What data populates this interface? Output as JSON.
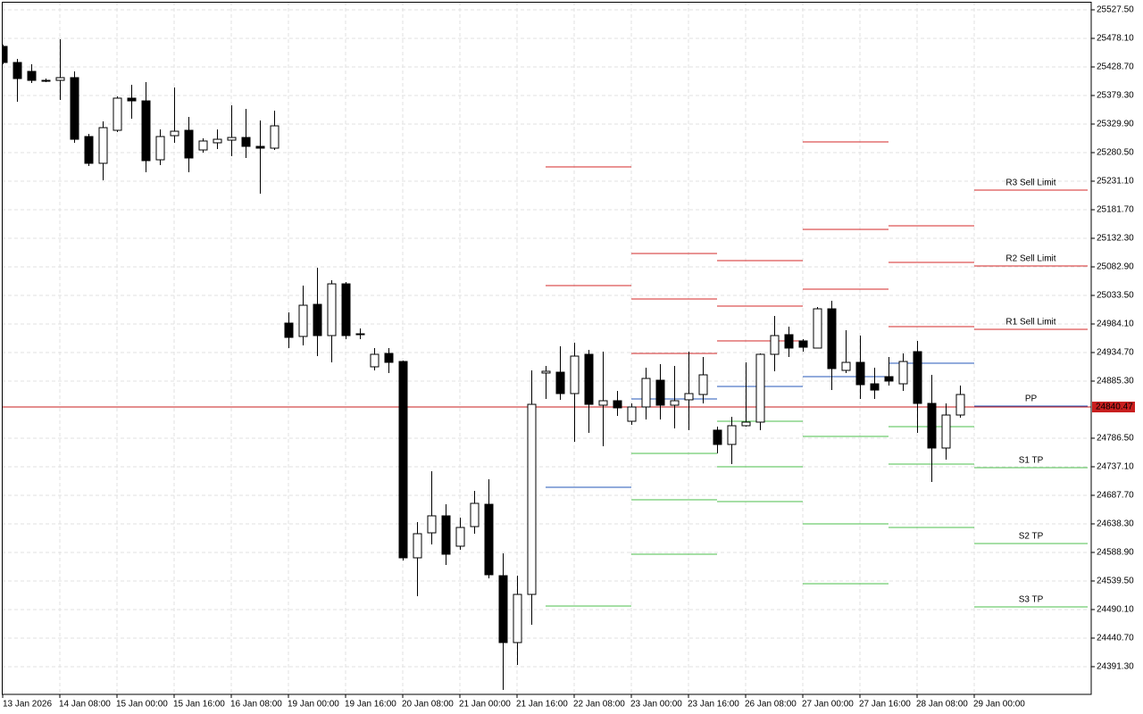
{
  "chart_data": {
    "type": "candlestick",
    "categories": [
      "13 Jan 2026",
      null,
      null,
      null,
      "14 Jan 08:00",
      null,
      null,
      null,
      "15 Jan 00:00",
      null,
      null,
      null,
      "15 Jan 16:00",
      null,
      null,
      null,
      "16 Jan 08:00",
      null,
      null,
      null,
      "19 Jan 00:00",
      null,
      null,
      null,
      "19 Jan 16:00",
      null,
      null,
      null,
      "20 Jan 08:00",
      null,
      null,
      null,
      "21 Jan 00:00",
      null,
      null,
      null,
      "21 Jan 16:00",
      null,
      null,
      null,
      "22 Jan 08:00",
      null,
      null,
      null,
      "23 Jan 00:00",
      null,
      null,
      null,
      "23 Jan 16:00",
      null,
      null,
      null,
      "26 Jan 08:00",
      null,
      null,
      null,
      "27 Jan 00:00",
      null,
      null,
      null,
      "27 Jan 16:00",
      null,
      null,
      null,
      "28 Jan 08:00",
      null,
      null,
      null,
      "29 Jan 00:00"
    ],
    "open": [
      25464.2,
      25436.4,
      25421.0,
      25405.5,
      25405.5,
      25410.2,
      25308.3,
      25262.0,
      25319.1,
      25374.7,
      25370.0,
      25268.1,
      25309.8,
      25319.1,
      25285.1,
      25297.5,
      25302.1,
      25306.7,
      25291.3,
      25288.2,
      24985.6,
      24962.5,
      25018.0,
      24964.0,
      25053.5,
      24967.1,
      24910.0,
      24933.1,
      24919.2,
      24579.6,
      24622.8,
      24652.2,
      24599.7,
      24633.6,
      24672.2,
      24548.7,
      24433.0,
      24516.3,
      24899.2,
      24900.7,
      24863.7,
      24931.6,
      24843.6,
      24851.3,
      24815.8,
      24840.5,
      24886.8,
      24843.6,
      24852.9,
      24862.1,
      24800.4,
      24775.7,
      24808.1,
      24814.3,
      24931.6,
      24965.6,
      24954.8,
      24942.4,
      25010.3,
      24903.8,
      24917.7,
      24880.6,
      24893.0,
      24880.6,
      24936.2,
      24846.7,
      24769.5,
      24826.6,
      null
    ],
    "high": [
      25467.3,
      25442.6,
      25433.3,
      25408.6,
      25476.6,
      25421.0,
      25312.9,
      25334.5,
      25377.8,
      25397.8,
      25402.5,
      25320.6,
      25393.2,
      25342.2,
      25305.2,
      25320.6,
      25362.3,
      25356.1,
      25336.1,
      25353.1,
      25004.1,
      25050.5,
      25081.3,
      25059.7,
      25056.6,
      24976.4,
      24942.4,
      24942.4,
      24920.8,
      24641.4,
      24729.3,
      24672.2,
      24649.1,
      24695.4,
      24715.5,
      24587.3,
      24548.7,
      24903.8,
      24911.5,
      24945.5,
      24951.7,
      24939.3,
      24936.2,
      24868.3,
      24846.7,
      24908.4,
      24914.6,
      24911.5,
      24936.2,
      24927.0,
      24806.5,
      24823.5,
      24917.7,
      24933.1,
      24998.0,
      24979.5,
      24957.8,
      25013.4,
      25024.2,
      24973.3,
      24964.0,
      24908.4,
      24927.0,
      24933.1,
      24954.8,
      24896.1,
      24846.7,
      24877.6,
      null
    ],
    "low": [
      25433.3,
      25368.5,
      25400.9,
      25402.5,
      25371.6,
      25297.5,
      25257.3,
      25232.6,
      25316.0,
      25339.2,
      25246.5,
      25258.9,
      25297.5,
      25246.5,
      25280.5,
      25286.7,
      25274.3,
      25271.2,
      25209.5,
      25285.1,
      24942.4,
      24947.0,
      24928.5,
      24917.7,
      24957.8,
      24957.8,
      24903.8,
      24899.2,
      24575.0,
      24513.2,
      24602.8,
      24567.3,
      24593.5,
      24621.3,
      24544.1,
      24351.1,
      24394.4,
      24463.8,
      24854.4,
      24852.9,
      24780.3,
      24795.7,
      24772.6,
      24825.1,
      24809.6,
      24818.9,
      24818.9,
      24803.5,
      24800.4,
      24846.7,
      24760.2,
      24741.7,
      24806.5,
      24800.4,
      24902.3,
      24927.0,
      24936.2,
      24942.4,
      24869.8,
      24899.2,
      24854.4,
      24854.4,
      24877.6,
      24868.3,
      24795.7,
      24710.8,
      24749.4,
      24822.0,
      null
    ],
    "close": [
      25436.4,
      25408.6,
      25405.5,
      25404.0,
      25410.2,
      25303.6,
      25262.0,
      25323.7,
      25374.7,
      25370.0,
      25266.6,
      25308.3,
      25317.5,
      25271.2,
      25300.6,
      25303.6,
      25306.7,
      25291.3,
      25288.2,
      25326.8,
      24960.9,
      25016.5,
      24964.0,
      25053.5,
      24964.0,
      24965.6,
      24931.6,
      24917.7,
      24579.6,
      24621.3,
      24652.2,
      24585.8,
      24632.1,
      24673.8,
      24550.3,
      24433.0,
      24516.3,
      24845.1,
      24902.3,
      24863.7,
      24928.5,
      24845.1,
      24851.3,
      24839.0,
      24840.5,
      24889.9,
      24843.6,
      24851.3,
      24863.7,
      24896.1,
      24775.7,
      24808.1,
      24814.3,
      24931.6,
      24964.0,
      24942.4,
      24943.9,
      25010.3,
      24906.9,
      24917.7,
      24879.1,
      24869.8,
      24885.3,
      24919.2,
      24846.7,
      24769.5,
      24826.6,
      24862.1,
      null
    ],
    "up_color": "#ffffff",
    "down_color": "#000000",
    "pivots": [
      {
        "name": "R3 Sell Limit",
        "color": "#d42a2a",
        "values": [
          null,
          null,
          null,
          null,
          null,
          null,
          null,
          null,
          null,
          null,
          null,
          null,
          null,
          null,
          null,
          null,
          null,
          null,
          null,
          null,
          null,
          null,
          null,
          null,
          null,
          null,
          null,
          null,
          null,
          null,
          null,
          null,
          null,
          null,
          null,
          null,
          null,
          null,
          null,
          null,
          null,
          null,
          null,
          null,
          25106.0,
          25106.0,
          25106.0,
          25106.0,
          25106.0,
          25106.0,
          25093.7,
          25093.7,
          25093.7,
          25093.7,
          25093.7,
          25093.7,
          25299.0,
          25299.0,
          25299.0,
          25299.0,
          25299.0,
          25299.0,
          25153.9,
          25153.9,
          25153.9,
          25153.9,
          25153.9,
          25153.9,
          25215.7
        ]
      },
      {
        "name": "R2 Sell Limit",
        "color": "#d42a2a",
        "values": [
          null,
          null,
          null,
          null,
          null,
          null,
          null,
          null,
          null,
          null,
          null,
          null,
          null,
          null,
          null,
          null,
          null,
          null,
          null,
          null,
          null,
          null,
          null,
          null,
          null,
          null,
          null,
          null,
          null,
          null,
          null,
          null,
          null,
          null,
          null,
          null,
          null,
          null,
          25255.8,
          25255.8,
          25255.8,
          25255.8,
          25255.8,
          25255.8,
          25027.3,
          25027.3,
          25027.3,
          25027.3,
          25027.3,
          25027.3,
          25015.0,
          25015.0,
          25015.0,
          25015.0,
          25015.0,
          25015.0,
          25147.7,
          25147.7,
          25147.7,
          25147.7,
          25147.7,
          25147.7,
          25090.6,
          25090.6,
          25090.6,
          25090.6,
          25090.6,
          25090.6,
          25084.4
        ]
      },
      {
        "name": "R1 Sell Limit",
        "color": "#d42a2a",
        "values": [
          null,
          null,
          null,
          null,
          null,
          null,
          null,
          null,
          null,
          null,
          null,
          null,
          null,
          null,
          null,
          null,
          null,
          null,
          null,
          null,
          null,
          null,
          null,
          null,
          null,
          null,
          null,
          null,
          null,
          null,
          null,
          null,
          null,
          null,
          null,
          null,
          null,
          null,
          25050.5,
          25050.5,
          25050.5,
          25050.5,
          25050.5,
          25050.5,
          24933.1,
          24933.1,
          24933.1,
          24933.1,
          24933.1,
          24933.1,
          24954.8,
          24954.8,
          24954.8,
          24954.8,
          24954.8,
          24954.8,
          25044.3,
          25044.3,
          25044.3,
          25044.3,
          25044.3,
          25044.3,
          24979.5,
          24979.5,
          24979.5,
          24979.5,
          24979.5,
          24979.5,
          24974.8
        ]
      },
      {
        "name": "PP",
        "color": "#2457b8",
        "values": [
          null,
          null,
          null,
          null,
          null,
          null,
          null,
          null,
          null,
          null,
          null,
          null,
          null,
          null,
          null,
          null,
          null,
          null,
          null,
          null,
          null,
          null,
          null,
          null,
          null,
          null,
          null,
          null,
          null,
          null,
          null,
          null,
          null,
          null,
          null,
          null,
          null,
          null,
          24701.6,
          24701.6,
          24701.6,
          24701.6,
          24701.6,
          24701.6,
          24854.4,
          24854.4,
          24854.4,
          24854.4,
          24854.4,
          24854.4,
          24876.0,
          24876.0,
          24876.0,
          24876.0,
          24876.0,
          24876.0,
          24893.0,
          24893.0,
          24893.0,
          24893.0,
          24893.0,
          24893.0,
          24916.2,
          24916.2,
          24916.2,
          24916.2,
          24916.2,
          24916.2,
          24842.1
        ]
      },
      {
        "name": "S1 TP",
        "color": "#4cbf4c",
        "values": [
          null,
          null,
          null,
          null,
          null,
          null,
          null,
          null,
          null,
          null,
          null,
          null,
          null,
          null,
          null,
          null,
          null,
          null,
          null,
          null,
          null,
          null,
          null,
          null,
          null,
          null,
          null,
          null,
          null,
          null,
          null,
          null,
          null,
          null,
          null,
          null,
          null,
          null,
          24496.2,
          24496.2,
          24496.2,
          24496.2,
          24496.2,
          24496.2,
          24760.2,
          24760.2,
          24760.2,
          24760.2,
          24760.2,
          24760.2,
          24815.8,
          24815.8,
          24815.8,
          24815.8,
          24815.8,
          24815.8,
          24789.6,
          24789.6,
          24789.6,
          24789.6,
          24789.6,
          24789.6,
          24806.5,
          24806.5,
          24806.5,
          24806.5,
          24806.5,
          24806.5,
          24735.5
        ]
      },
      {
        "name": "S2 TP",
        "color": "#4cbf4c",
        "values": [
          null,
          null,
          null,
          null,
          null,
          null,
          null,
          null,
          null,
          null,
          null,
          null,
          null,
          null,
          null,
          null,
          null,
          null,
          null,
          null,
          null,
          null,
          null,
          null,
          null,
          null,
          null,
          null,
          null,
          null,
          null,
          null,
          null,
          null,
          null,
          null,
          null,
          null,
          null,
          null,
          null,
          null,
          null,
          null,
          24680.0,
          24680.0,
          24680.0,
          24680.0,
          24680.0,
          24680.0,
          24737.1,
          24737.1,
          24737.1,
          24737.1,
          24737.1,
          24737.1,
          24638.3,
          24638.3,
          24638.3,
          24638.3,
          24638.3,
          24638.3,
          24741.7,
          24741.7,
          24741.7,
          24741.7,
          24741.7,
          24741.7,
          24604.3
        ]
      },
      {
        "name": "S3 TP",
        "color": "#4cbf4c",
        "values": [
          null,
          null,
          null,
          null,
          null,
          null,
          null,
          null,
          null,
          null,
          null,
          null,
          null,
          null,
          null,
          null,
          null,
          null,
          null,
          null,
          null,
          null,
          null,
          null,
          null,
          null,
          null,
          null,
          null,
          null,
          null,
          null,
          null,
          null,
          null,
          null,
          null,
          null,
          null,
          null,
          null,
          null,
          null,
          null,
          24585.8,
          24585.8,
          24585.8,
          24585.8,
          24585.8,
          24585.8,
          24676.9,
          24676.9,
          24676.9,
          24676.9,
          24676.9,
          24676.9,
          24534.8,
          24534.8,
          24534.8,
          24534.8,
          24534.8,
          24534.8,
          24632.1,
          24632.1,
          24632.1,
          24632.1,
          24632.1,
          24632.1,
          24494.7
        ]
      }
    ],
    "last_price": 24840.47,
    "last_price_color": "#c81e1e",
    "ylim": [
      24343.4,
      25541.4
    ],
    "yticks": [
      {
        "value": 25527.5,
        "label": "25527.50"
      },
      {
        "value": 25478.1,
        "label": "25478.10"
      },
      {
        "value": 25428.7,
        "label": "25428.70"
      },
      {
        "value": 25379.3,
        "label": "25379.30"
      },
      {
        "value": 25329.9,
        "label": "25329.90"
      },
      {
        "value": 25280.5,
        "label": "25280.50"
      },
      {
        "value": 25231.1,
        "label": "25231.10"
      },
      {
        "value": 25181.7,
        "label": "25181.70"
      },
      {
        "value": 25132.3,
        "label": "25132.30"
      },
      {
        "value": 25082.9,
        "label": "25082.90"
      },
      {
        "value": 25033.5,
        "label": "25033.50"
      },
      {
        "value": 24984.1,
        "label": "24984.10"
      },
      {
        "value": 24934.7,
        "label": "24934.70"
      },
      {
        "value": 24885.3,
        "label": "24885.30"
      },
      {
        "value": 24786.5,
        "label": "24786.50"
      },
      {
        "value": 24737.1,
        "label": "24737.10"
      },
      {
        "value": 24687.7,
        "label": "24687.70"
      },
      {
        "value": 24638.3,
        "label": "24638.30"
      },
      {
        "value": 24588.9,
        "label": "24588.90"
      },
      {
        "value": 24539.5,
        "label": "24539.50"
      },
      {
        "value": 24490.1,
        "label": "24490.10"
      },
      {
        "value": 24440.7,
        "label": "24440.70"
      },
      {
        "value": 24391.3,
        "label": "24391.30"
      }
    ],
    "grid": true
  }
}
